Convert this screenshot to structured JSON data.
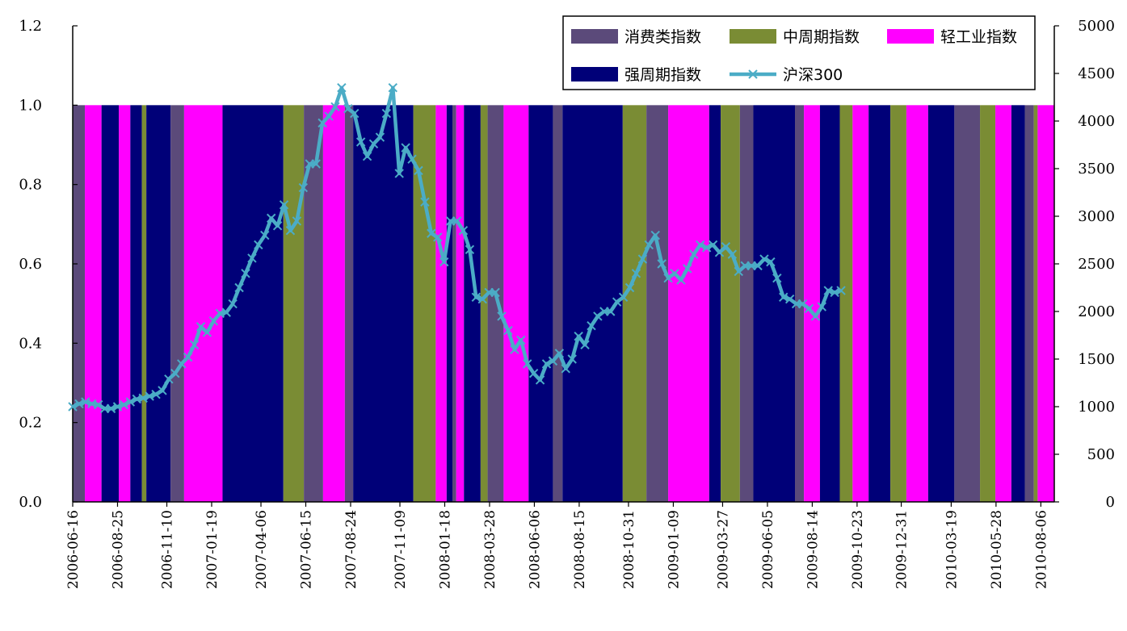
{
  "chart_data": {
    "type": "bar+line",
    "title": "",
    "left_axis": {
      "min": 0,
      "max": 1.2,
      "ticks": [
        0.0,
        0.2,
        0.4,
        0.6,
        0.8,
        1.0,
        1.2
      ],
      "tick_labels": [
        "0.0",
        "0.2",
        "0.4",
        "0.6",
        "0.8",
        "1.0",
        "1.2"
      ]
    },
    "right_axis": {
      "min": 0,
      "max": 5000,
      "ticks": [
        0,
        500,
        1000,
        1500,
        2000,
        2500,
        3000,
        3500,
        4000,
        4500,
        5000
      ],
      "tick_labels": [
        "0",
        "500",
        "1000",
        "1500",
        "2000",
        "2500",
        "3000",
        "3500",
        "4000",
        "4500",
        "5000"
      ]
    },
    "x_axis": {
      "start": "2006-06-16",
      "end": "2010-08-27",
      "tick_labels": [
        "2006-06-16",
        "2006-08-25",
        "2006-11-10",
        "2007-01-19",
        "2007-04-06",
        "2007-06-15",
        "2007-08-24",
        "2007-11-09",
        "2008-01-18",
        "2008-03-28",
        "2008-06-06",
        "2008-08-15",
        "2008-10-31",
        "2009-01-09",
        "2009-03-27",
        "2009-06-05",
        "2009-08-14",
        "2009-10-23",
        "2009-12-31",
        "2010-03-19",
        "2010-05-28",
        "2010-08-06"
      ]
    },
    "legend": {
      "placement": "top-right",
      "items": [
        {
          "name": "消费类指数",
          "color": "#5b4a7a",
          "kind": "bar"
        },
        {
          "name": "中周期指数",
          "color": "#7a8c34",
          "kind": "bar"
        },
        {
          "name": "轻工业指数",
          "color": "#ff00ff",
          "kind": "bar"
        },
        {
          "name": "强周期指数",
          "color": "#000078",
          "kind": "bar"
        },
        {
          "name": "沪深300",
          "color": "#4bacc6",
          "kind": "line"
        }
      ]
    },
    "regime_value": 1.0,
    "regimes": [
      {
        "start": "2006-06-16",
        "end": "2006-07-05",
        "series": "消费类指数"
      },
      {
        "start": "2006-07-05",
        "end": "2006-07-31",
        "series": "轻工业指数"
      },
      {
        "start": "2006-07-31",
        "end": "2006-08-27",
        "series": "强周期指数"
      },
      {
        "start": "2006-08-27",
        "end": "2006-09-14",
        "series": "轻工业指数"
      },
      {
        "start": "2006-09-14",
        "end": "2006-10-02",
        "series": "强周期指数"
      },
      {
        "start": "2006-10-02",
        "end": "2006-10-09",
        "series": "中周期指数"
      },
      {
        "start": "2006-10-09",
        "end": "2006-11-16",
        "series": "强周期指数"
      },
      {
        "start": "2006-11-16",
        "end": "2006-12-07",
        "series": "消费类指数"
      },
      {
        "start": "2006-12-07",
        "end": "2007-02-05",
        "series": "轻工业指数"
      },
      {
        "start": "2007-02-05",
        "end": "2007-05-11",
        "series": "强周期指数"
      },
      {
        "start": "2007-05-11",
        "end": "2007-06-12",
        "series": "中周期指数"
      },
      {
        "start": "2007-06-12",
        "end": "2007-07-12",
        "series": "消费类指数"
      },
      {
        "start": "2007-07-12",
        "end": "2007-08-15",
        "series": "轻工业指数"
      },
      {
        "start": "2007-08-15",
        "end": "2007-08-28",
        "series": "消费类指数"
      },
      {
        "start": "2007-08-28",
        "end": "2007-11-30",
        "series": "强周期指数"
      },
      {
        "start": "2007-11-30",
        "end": "2008-01-04",
        "series": "中周期指数"
      },
      {
        "start": "2008-01-04",
        "end": "2008-01-21",
        "series": "轻工业指数"
      },
      {
        "start": "2008-01-21",
        "end": "2008-01-30",
        "series": "强周期指数"
      },
      {
        "start": "2008-01-30",
        "end": "2008-02-05",
        "series": "消费类指数"
      },
      {
        "start": "2008-02-05",
        "end": "2008-02-17",
        "series": "轻工业指数"
      },
      {
        "start": "2008-02-17",
        "end": "2008-03-14",
        "series": "强周期指数"
      },
      {
        "start": "2008-03-14",
        "end": "2008-03-25",
        "series": "中周期指数"
      },
      {
        "start": "2008-03-25",
        "end": "2008-04-19",
        "series": "消费类指数"
      },
      {
        "start": "2008-04-19",
        "end": "2008-05-28",
        "series": "轻工业指数"
      },
      {
        "start": "2008-05-28",
        "end": "2008-07-05",
        "series": "强周期指数"
      },
      {
        "start": "2008-07-05",
        "end": "2008-07-20",
        "series": "消费类指数"
      },
      {
        "start": "2008-07-20",
        "end": "2008-10-22",
        "series": "强周期指数"
      },
      {
        "start": "2008-10-22",
        "end": "2008-11-28",
        "series": "中周期指数"
      },
      {
        "start": "2008-11-28",
        "end": "2009-01-01",
        "series": "消费类指数"
      },
      {
        "start": "2009-01-01",
        "end": "2009-03-06",
        "series": "轻工业指数"
      },
      {
        "start": "2009-03-06",
        "end": "2009-03-24",
        "series": "强周期指数"
      },
      {
        "start": "2009-03-24",
        "end": "2009-04-23",
        "series": "中周期指数"
      },
      {
        "start": "2009-04-23",
        "end": "2009-05-14",
        "series": "消费类指数"
      },
      {
        "start": "2009-05-14",
        "end": "2009-07-18",
        "series": "强周期指数"
      },
      {
        "start": "2009-07-18",
        "end": "2009-08-01",
        "series": "消费类指数"
      },
      {
        "start": "2009-08-01",
        "end": "2009-08-26",
        "series": "轻工业指数"
      },
      {
        "start": "2009-08-26",
        "end": "2009-09-26",
        "series": "强周期指数"
      },
      {
        "start": "2009-09-26",
        "end": "2009-10-16",
        "series": "中周期指数"
      },
      {
        "start": "2009-10-16",
        "end": "2009-11-10",
        "series": "轻工业指数"
      },
      {
        "start": "2009-11-10",
        "end": "2009-12-14",
        "series": "强周期指数"
      },
      {
        "start": "2009-12-14",
        "end": "2010-01-08",
        "series": "中周期指数"
      },
      {
        "start": "2010-01-08",
        "end": "2010-02-11",
        "series": "轻工业指数"
      },
      {
        "start": "2010-02-11",
        "end": "2010-03-24",
        "series": "强周期指数"
      },
      {
        "start": "2010-03-24",
        "end": "2010-05-03",
        "series": "消费类指数"
      },
      {
        "start": "2010-05-03",
        "end": "2010-05-27",
        "series": "中周期指数"
      },
      {
        "start": "2010-05-27",
        "end": "2010-06-21",
        "series": "轻工业指数"
      },
      {
        "start": "2010-06-21",
        "end": "2010-07-12",
        "series": "强周期指数"
      },
      {
        "start": "2010-07-12",
        "end": "2010-07-26",
        "series": "消费类指数"
      },
      {
        "start": "2010-07-26",
        "end": "2010-08-01",
        "series": "中周期指数"
      },
      {
        "start": "2010-08-01",
        "end": "2010-08-27",
        "series": "轻工业指数"
      }
    ],
    "line_series": {
      "name": "沪深300",
      "axis": "right",
      "points": [
        [
          "2006-06-16",
          1000
        ],
        [
          "2006-06-26",
          1030
        ],
        [
          "2006-07-06",
          1050
        ],
        [
          "2006-07-16",
          1030
        ],
        [
          "2006-07-26",
          1020
        ],
        [
          "2006-08-05",
          980
        ],
        [
          "2006-08-15",
          980
        ],
        [
          "2006-08-25",
          1000
        ],
        [
          "2006-09-04",
          1020
        ],
        [
          "2006-09-14",
          1050
        ],
        [
          "2006-09-24",
          1080
        ],
        [
          "2006-10-04",
          1090
        ],
        [
          "2006-10-14",
          1110
        ],
        [
          "2006-10-24",
          1130
        ],
        [
          "2006-11-03",
          1170
        ],
        [
          "2006-11-13",
          1290
        ],
        [
          "2006-11-23",
          1350
        ],
        [
          "2006-12-03",
          1450
        ],
        [
          "2006-12-13",
          1520
        ],
        [
          "2006-12-23",
          1650
        ],
        [
          "2007-01-02",
          1840
        ],
        [
          "2007-01-12",
          1780
        ],
        [
          "2007-01-22",
          1900
        ],
        [
          "2007-02-01",
          1980
        ],
        [
          "2007-02-11",
          1990
        ],
        [
          "2007-02-21",
          2080
        ],
        [
          "2007-03-03",
          2250
        ],
        [
          "2007-03-13",
          2400
        ],
        [
          "2007-03-23",
          2560
        ],
        [
          "2007-04-02",
          2700
        ],
        [
          "2007-04-12",
          2800
        ],
        [
          "2007-04-22",
          2980
        ],
        [
          "2007-05-02",
          2900
        ],
        [
          "2007-05-12",
          3120
        ],
        [
          "2007-05-22",
          2850
        ],
        [
          "2007-06-01",
          2950
        ],
        [
          "2007-06-11",
          3300
        ],
        [
          "2007-06-21",
          3550
        ],
        [
          "2007-07-01",
          3550
        ],
        [
          "2007-07-11",
          3980
        ],
        [
          "2007-07-21",
          4050
        ],
        [
          "2007-07-31",
          4150
        ],
        [
          "2007-08-10",
          4350
        ],
        [
          "2007-08-20",
          4130
        ],
        [
          "2007-08-30",
          4080
        ],
        [
          "2007-09-09",
          3780
        ],
        [
          "2007-09-19",
          3630
        ],
        [
          "2007-09-29",
          3760
        ],
        [
          "2007-10-09",
          3830
        ],
        [
          "2007-10-19",
          4080
        ],
        [
          "2007-10-29",
          4350
        ],
        [
          "2007-11-08",
          3450
        ],
        [
          "2007-11-18",
          3720
        ],
        [
          "2007-11-28",
          3600
        ],
        [
          "2007-12-08",
          3480
        ],
        [
          "2007-12-18",
          3150
        ],
        [
          "2007-12-28",
          2820
        ],
        [
          "2008-01-07",
          2780
        ],
        [
          "2008-01-17",
          2520
        ],
        [
          "2008-01-27",
          2950
        ],
        [
          "2008-02-06",
          2950
        ],
        [
          "2008-02-16",
          2850
        ],
        [
          "2008-02-26",
          2650
        ],
        [
          "2008-03-07",
          2150
        ],
        [
          "2008-03-17",
          2130
        ],
        [
          "2008-03-27",
          2200
        ],
        [
          "2008-04-06",
          2200
        ],
        [
          "2008-04-16",
          1950
        ],
        [
          "2008-04-26",
          1800
        ],
        [
          "2008-05-06",
          1600
        ],
        [
          "2008-05-16",
          1700
        ],
        [
          "2008-05-26",
          1450
        ],
        [
          "2008-06-05",
          1350
        ],
        [
          "2008-06-15",
          1280
        ],
        [
          "2008-06-25",
          1450
        ],
        [
          "2008-07-05",
          1480
        ],
        [
          "2008-07-15",
          1560
        ],
        [
          "2008-07-25",
          1400
        ],
        [
          "2008-08-04",
          1500
        ],
        [
          "2008-08-14",
          1740
        ],
        [
          "2008-08-24",
          1650
        ],
        [
          "2008-09-03",
          1850
        ],
        [
          "2008-09-13",
          1950
        ],
        [
          "2008-09-23",
          2000
        ],
        [
          "2008-10-03",
          2000
        ],
        [
          "2008-10-13",
          2100
        ],
        [
          "2008-10-23",
          2150
        ],
        [
          "2008-11-02",
          2250
        ],
        [
          "2008-11-12",
          2400
        ],
        [
          "2008-11-22",
          2550
        ],
        [
          "2008-12-02",
          2700
        ],
        [
          "2008-12-12",
          2800
        ],
        [
          "2008-12-22",
          2500
        ],
        [
          "2009-01-01",
          2350
        ],
        [
          "2009-01-11",
          2400
        ],
        [
          "2009-01-21",
          2330
        ],
        [
          "2009-01-31",
          2450
        ],
        [
          "2009-02-10",
          2600
        ],
        [
          "2009-02-20",
          2700
        ],
        [
          "2009-03-02",
          2670
        ],
        [
          "2009-03-12",
          2700
        ],
        [
          "2009-03-22",
          2620
        ],
        [
          "2009-04-01",
          2680
        ],
        [
          "2009-04-11",
          2600
        ],
        [
          "2009-04-21",
          2420
        ],
        [
          "2009-05-01",
          2480
        ],
        [
          "2009-05-11",
          2480
        ],
        [
          "2009-05-21",
          2480
        ],
        [
          "2009-05-31",
          2550
        ],
        [
          "2009-06-10",
          2520
        ],
        [
          "2009-06-20",
          2350
        ],
        [
          "2009-06-30",
          2150
        ],
        [
          "2009-07-10",
          2130
        ],
        [
          "2009-07-20",
          2080
        ],
        [
          "2009-07-30",
          2080
        ],
        [
          "2009-08-09",
          2030
        ],
        [
          "2009-08-19",
          1950
        ],
        [
          "2009-08-29",
          2050
        ],
        [
          "2009-09-08",
          2220
        ],
        [
          "2009-09-18",
          2200
        ],
        [
          "2009-09-28",
          2220
        ]
      ],
      "points_note": ""
    }
  }
}
